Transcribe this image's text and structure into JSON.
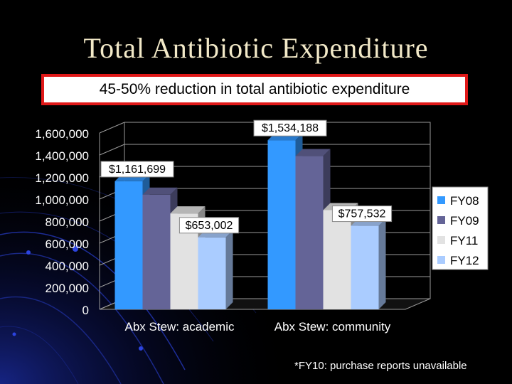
{
  "title": "Total Antibiotic Expenditure",
  "subtitle": "45-50% reduction in total antibiotic expenditure",
  "footnote": "*FY10: purchase reports unavailable",
  "chart_data": {
    "type": "bar",
    "title": "",
    "xlabel": "",
    "ylabel": "",
    "ylim": [
      0,
      1600000
    ],
    "y_ticks": [
      0,
      200000,
      400000,
      600000,
      800000,
      1000000,
      1200000,
      1400000,
      1600000
    ],
    "y_tick_labels": [
      "0",
      "200,000",
      "400,000",
      "600,000",
      "800,000",
      "1,000,000",
      "1,200,000",
      "1,400,000",
      "1,600,000"
    ],
    "categories": [
      "Abx Stew: academic",
      "Abx Stew: community"
    ],
    "series": [
      {
        "name": "FY08",
        "values": [
          1161699,
          1534188
        ],
        "color": "#3399ff"
      },
      {
        "name": "FY09",
        "values": [
          1040000,
          1390000
        ],
        "color": "#646497"
      },
      {
        "name": "FY11",
        "values": [
          870000,
          900000
        ],
        "color": "#e2e2e2"
      },
      {
        "name": "FY12",
        "values": [
          653002,
          757532
        ],
        "color": "#aaccff"
      }
    ],
    "data_labels": [
      {
        "series": "FY08",
        "category": "Abx Stew: academic",
        "text": "$1,161,699"
      },
      {
        "series": "FY12",
        "category": "Abx Stew: academic",
        "text": "$653,002"
      },
      {
        "series": "FY08",
        "category": "Abx Stew: community",
        "text": "$1,534,188"
      },
      {
        "series": "FY12",
        "category": "Abx Stew: community",
        "text": "$757,532"
      }
    ],
    "grid": true,
    "legend_position": "right",
    "style": "3d"
  }
}
